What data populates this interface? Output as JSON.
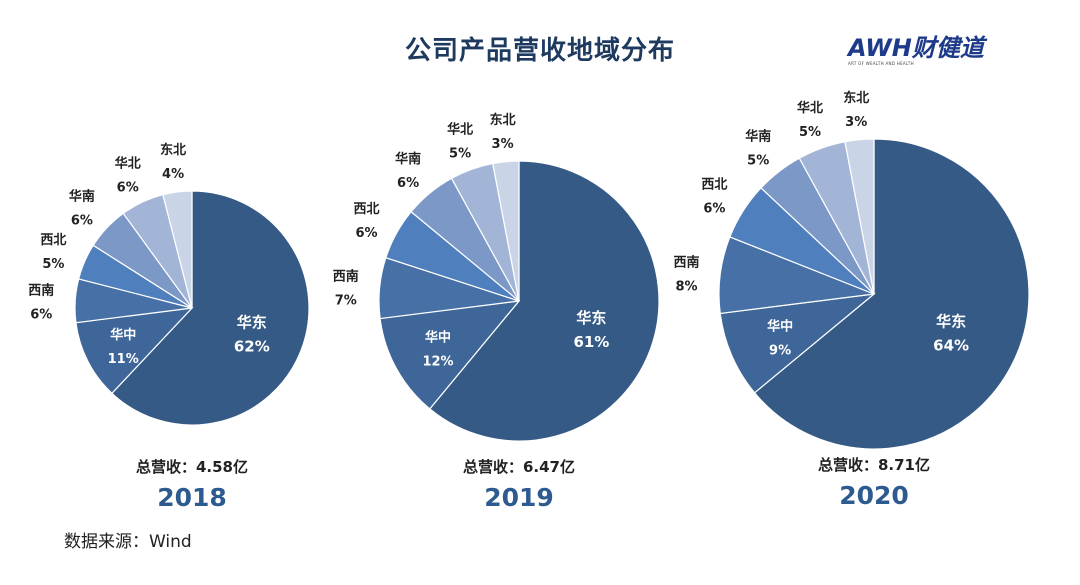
{
  "title": "公司产品营收地域分布",
  "logo": {
    "text": "AWH财健道",
    "subtitle": "ART OF WEALTH AND HEALTH"
  },
  "source": "数据来源：Wind",
  "chart_data": [
    {
      "type": "pie",
      "year": "2018",
      "total": "总营收：4.58亿",
      "slices": [
        {
          "label": "华东",
          "value": 62
        },
        {
          "label": "华中",
          "value": 11
        },
        {
          "label": "西南",
          "value": 6
        },
        {
          "label": "西北",
          "value": 5
        },
        {
          "label": "华南",
          "value": 6
        },
        {
          "label": "华北",
          "value": 6
        },
        {
          "label": "东北",
          "value": 4
        }
      ]
    },
    {
      "type": "pie",
      "year": "2019",
      "total": "总营收：6.47亿",
      "slices": [
        {
          "label": "华东",
          "value": 61
        },
        {
          "label": "华中",
          "value": 12
        },
        {
          "label": "西南",
          "value": 7
        },
        {
          "label": "西北",
          "value": 6
        },
        {
          "label": "华南",
          "value": 6
        },
        {
          "label": "华北",
          "value": 5
        },
        {
          "label": "东北",
          "value": 3
        }
      ]
    },
    {
      "type": "pie",
      "year": "2020",
      "total": "总营收：8.71亿",
      "slices": [
        {
          "label": "华东",
          "value": 64
        },
        {
          "label": "华中",
          "value": 9
        },
        {
          "label": "西南",
          "value": 8
        },
        {
          "label": "西北",
          "value": 6
        },
        {
          "label": "华南",
          "value": 5
        },
        {
          "label": "华北",
          "value": 5
        },
        {
          "label": "东北",
          "value": 3
        }
      ]
    }
  ],
  "colors": {
    "slices": [
      "#365a86",
      "#3e6698",
      "#4670a6",
      "#4f80bd",
      "#7b98c7",
      "#a3b5d6",
      "#c9d4e6"
    ],
    "title": "#1f3a5f",
    "year": "#2d5b8f"
  }
}
